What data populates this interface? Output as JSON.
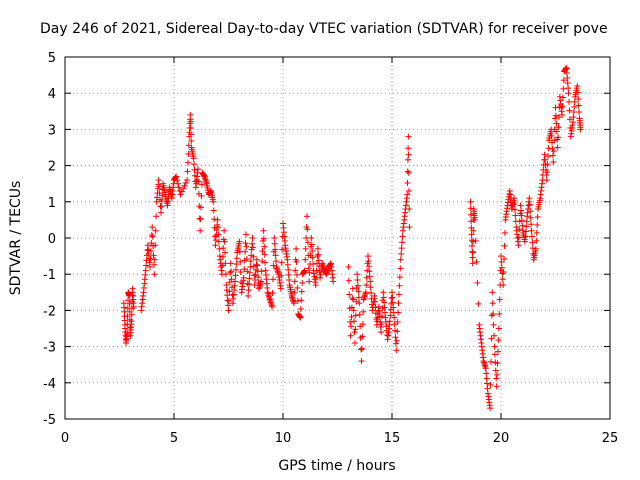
{
  "chart_data": {
    "type": "scatter",
    "title": "Day 246 of 2021, Sidereal Day-to-day VTEC variation (SDTVAR) for receiver pove",
    "xlabel": "GPS time / hours",
    "ylabel": "SDTVAR / TECUs",
    "xlim": [
      0,
      25
    ],
    "ylim": [
      -5,
      5
    ],
    "xticks": [
      0,
      5,
      10,
      15,
      20,
      25
    ],
    "yticks": [
      -5,
      -4,
      -3,
      -2,
      -1,
      0,
      1,
      2,
      3,
      4,
      5
    ],
    "grid": true,
    "marker": "+",
    "color": "#ff0000",
    "series": [
      {
        "name": "SDTVAR",
        "points": [
          [
            2.7,
            -1.8
          ],
          [
            2.75,
            -2.4
          ],
          [
            2.8,
            -2.9
          ],
          [
            2.85,
            -2.6
          ],
          [
            2.9,
            -1.5
          ],
          [
            2.95,
            -1.6
          ],
          [
            3.0,
            -2.7
          ],
          [
            3.05,
            -2.3
          ],
          [
            3.1,
            -1.4
          ],
          [
            3.15,
            -1.9
          ],
          [
            3.5,
            -2.0
          ],
          [
            3.6,
            -1.5
          ],
          [
            3.7,
            -0.9
          ],
          [
            3.8,
            -0.2
          ],
          [
            3.9,
            -0.8
          ],
          [
            4.0,
            0.3
          ],
          [
            4.1,
            -1.0
          ],
          [
            4.2,
            1.0
          ],
          [
            4.3,
            1.6
          ],
          [
            4.4,
            0.7
          ],
          [
            4.5,
            1.5
          ],
          [
            4.6,
            1.2
          ],
          [
            4.7,
            0.9
          ],
          [
            4.8,
            1.4
          ],
          [
            4.9,
            1.1
          ],
          [
            5.0,
            1.6
          ],
          [
            5.1,
            1.7
          ],
          [
            5.3,
            1.2
          ],
          [
            5.6,
            1.6
          ],
          [
            5.7,
            2.8
          ],
          [
            5.75,
            3.4
          ],
          [
            5.8,
            2.5
          ],
          [
            5.9,
            2.2
          ],
          [
            6.0,
            1.4
          ],
          [
            6.1,
            1.9
          ],
          [
            6.2,
            0.2
          ],
          [
            6.3,
            1.8
          ],
          [
            6.4,
            1.7
          ],
          [
            6.5,
            1.5
          ],
          [
            6.6,
            1.2
          ],
          [
            6.7,
            1.3
          ],
          [
            6.8,
            1.0
          ],
          [
            6.9,
            -0.2
          ],
          [
            7.0,
            0.5
          ],
          [
            7.1,
            -0.5
          ],
          [
            7.2,
            -1.0
          ],
          [
            7.3,
            0.2
          ],
          [
            7.4,
            -1.3
          ],
          [
            7.5,
            -2.0
          ],
          [
            7.6,
            -0.7
          ],
          [
            7.7,
            -1.8
          ],
          [
            7.8,
            -1.2
          ],
          [
            7.9,
            -0.4
          ],
          [
            8.0,
            -0.1
          ],
          [
            8.1,
            -1.5
          ],
          [
            8.2,
            -1.1
          ],
          [
            8.3,
            0.1
          ],
          [
            8.4,
            -1.6
          ],
          [
            8.5,
            -0.8
          ],
          [
            8.6,
            0.0
          ],
          [
            8.7,
            -1.3
          ],
          [
            8.8,
            -0.6
          ],
          [
            8.9,
            -1.4
          ],
          [
            9.0,
            -1.2
          ],
          [
            9.1,
            0.2
          ],
          [
            9.2,
            -0.9
          ],
          [
            9.3,
            -1.5
          ],
          [
            9.4,
            -1.7
          ],
          [
            9.5,
            -1.9
          ],
          [
            9.6,
            0.0
          ],
          [
            9.7,
            -0.8
          ],
          [
            9.8,
            -1.0
          ],
          [
            9.9,
            -1.4
          ],
          [
            10.0,
            0.4
          ],
          [
            10.1,
            -0.2
          ],
          [
            10.2,
            -0.6
          ],
          [
            10.3,
            -1.3
          ],
          [
            10.4,
            -1.6
          ],
          [
            10.5,
            -1.8
          ],
          [
            10.6,
            -0.3
          ],
          [
            10.7,
            -2.1
          ],
          [
            10.8,
            -2.2
          ],
          [
            10.9,
            -1.0
          ],
          [
            11.0,
            -0.9
          ],
          [
            11.1,
            0.6
          ],
          [
            11.2,
            -1.2
          ],
          [
            11.3,
            0.0
          ],
          [
            11.4,
            -0.9
          ],
          [
            11.5,
            -1.3
          ],
          [
            11.6,
            -0.3
          ],
          [
            11.7,
            -1.1
          ],
          [
            11.8,
            -0.7
          ],
          [
            11.9,
            -0.9
          ],
          [
            12.0,
            -1.0
          ],
          [
            12.1,
            -0.8
          ],
          [
            12.2,
            -0.7
          ],
          [
            12.3,
            -1.2
          ],
          [
            13.0,
            -0.8
          ],
          [
            13.1,
            -2.7
          ],
          [
            13.2,
            -1.4
          ],
          [
            13.3,
            -2.9
          ],
          [
            13.4,
            -1.0
          ],
          [
            13.5,
            -1.8
          ],
          [
            13.6,
            -3.4
          ],
          [
            13.7,
            -1.7
          ],
          [
            13.8,
            -1.5
          ],
          [
            13.9,
            -0.5
          ],
          [
            14.0,
            -1.2
          ],
          [
            14.1,
            -2.0
          ],
          [
            14.2,
            -1.6
          ],
          [
            14.3,
            -2.4
          ],
          [
            14.4,
            -1.9
          ],
          [
            14.5,
            -2.6
          ],
          [
            14.6,
            -1.5
          ],
          [
            14.7,
            -2.2
          ],
          [
            14.8,
            -2.8
          ],
          [
            14.9,
            -2.3
          ],
          [
            15.0,
            -1.5
          ],
          [
            15.1,
            -2.2
          ],
          [
            15.2,
            -3.1
          ],
          [
            15.3,
            -1.8
          ],
          [
            15.4,
            -0.6
          ],
          [
            15.5,
            0.2
          ],
          [
            15.6,
            0.7
          ],
          [
            15.7,
            1.2
          ],
          [
            15.75,
            2.8
          ],
          [
            15.8,
            0.3
          ],
          [
            18.6,
            1.0
          ],
          [
            18.65,
            0.1
          ],
          [
            18.7,
            -0.7
          ],
          [
            18.75,
            0.8
          ],
          [
            18.8,
            0.5
          ],
          [
            19.0,
            -2.4
          ],
          [
            19.1,
            -2.9
          ],
          [
            19.2,
            -3.4
          ],
          [
            19.3,
            -3.6
          ],
          [
            19.4,
            -4.3
          ],
          [
            19.5,
            -4.7
          ],
          [
            19.6,
            -1.5
          ],
          [
            19.7,
            -3.0
          ],
          [
            19.8,
            -4.1
          ],
          [
            19.9,
            -2.5
          ],
          [
            20.0,
            -0.5
          ],
          [
            20.1,
            -1.3
          ],
          [
            20.2,
            0.5
          ],
          [
            20.3,
            0.9
          ],
          [
            20.4,
            1.3
          ],
          [
            20.5,
            0.8
          ],
          [
            20.6,
            1.1
          ],
          [
            20.7,
            0.3
          ],
          [
            20.8,
            -0.2
          ],
          [
            20.9,
            0.9
          ],
          [
            21.0,
            0.2
          ],
          [
            21.1,
            -0.1
          ],
          [
            21.2,
            0.6
          ],
          [
            21.3,
            1.1
          ],
          [
            21.4,
            0.2
          ],
          [
            21.5,
            -0.6
          ],
          [
            21.6,
            -0.3
          ],
          [
            21.7,
            0.8
          ],
          [
            21.8,
            1.1
          ],
          [
            21.9,
            1.6
          ],
          [
            22.0,
            2.3
          ],
          [
            22.1,
            1.6
          ],
          [
            22.2,
            2.7
          ],
          [
            22.3,
            3.0
          ],
          [
            22.4,
            2.1
          ],
          [
            22.5,
            3.6
          ],
          [
            22.6,
            2.5
          ],
          [
            22.7,
            3.9
          ],
          [
            22.8,
            3.4
          ],
          [
            22.9,
            4.6
          ],
          [
            23.0,
            4.7
          ],
          [
            23.1,
            4.0
          ],
          [
            23.2,
            2.8
          ],
          [
            23.3,
            3.2
          ],
          [
            23.4,
            3.9
          ],
          [
            23.5,
            4.2
          ],
          [
            23.6,
            3.3
          ],
          [
            23.65,
            3.0
          ]
        ]
      }
    ]
  }
}
